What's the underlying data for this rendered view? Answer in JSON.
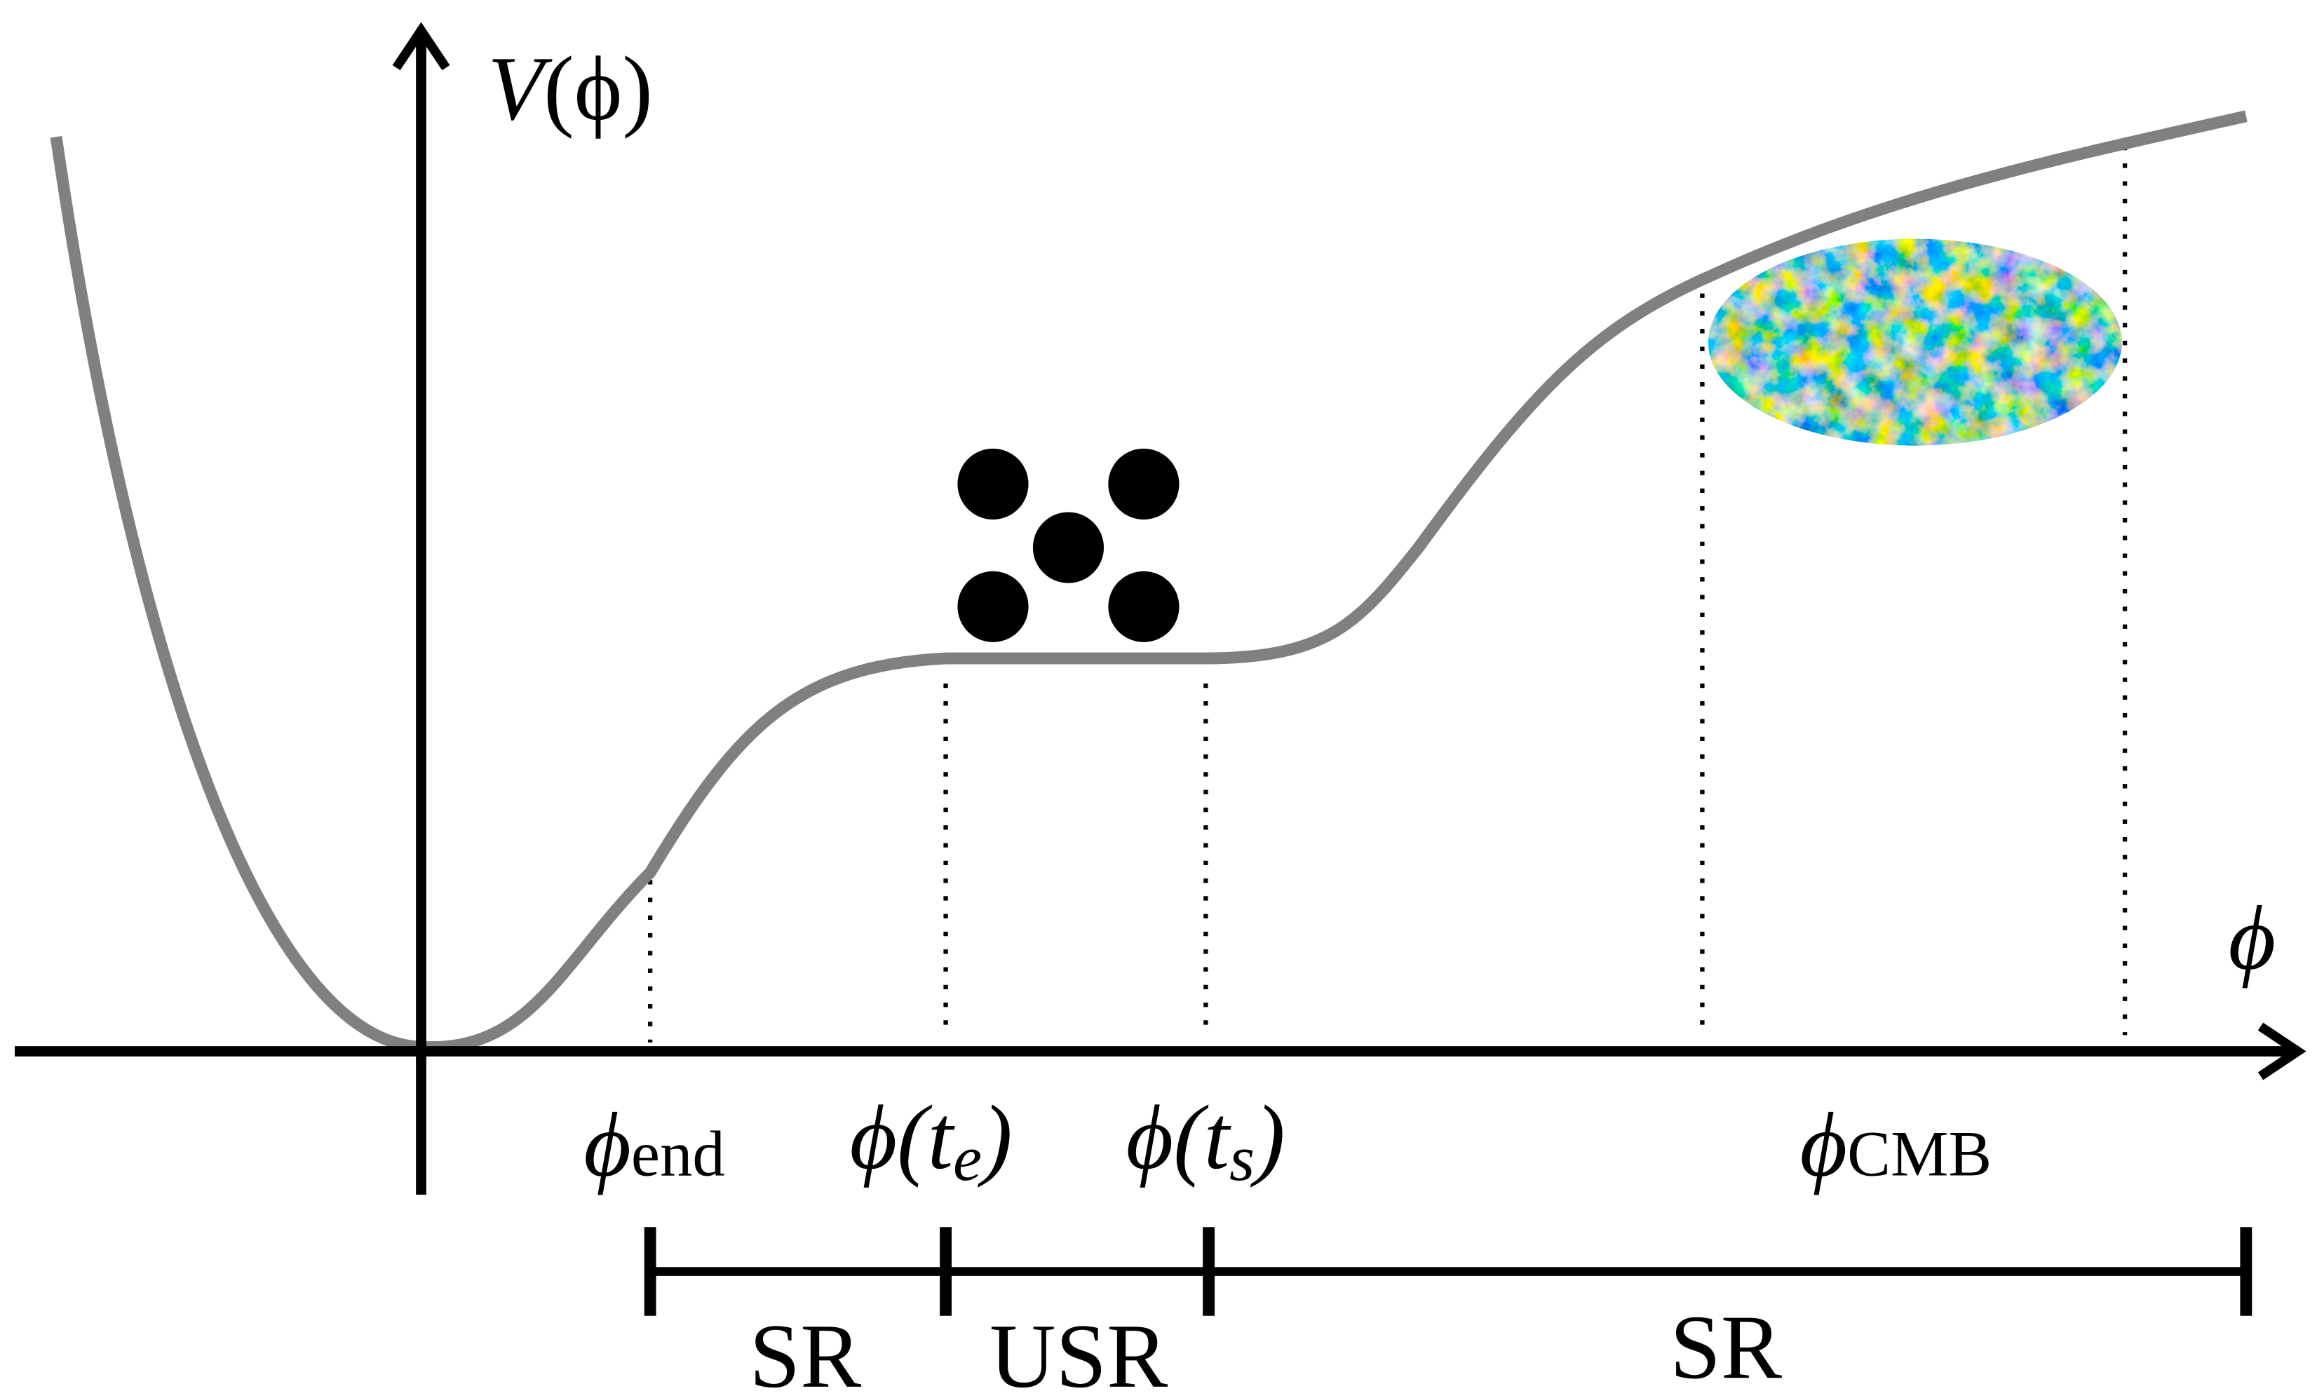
{
  "y_axis_label": {
    "symbol": "V",
    "argument": "(ϕ)"
  },
  "x_axis_label": "ϕ",
  "markers": [
    {
      "symbol": "ϕ",
      "subscript": "end"
    },
    {
      "symbol": "ϕ(t",
      "subscript": "e",
      "close": ")"
    },
    {
      "symbol": "ϕ(t",
      "subscript": "s",
      "close": ")"
    },
    {
      "symbol": "ϕ",
      "subscript": "CMB"
    }
  ],
  "phases": [
    "SR",
    "USR",
    "SR"
  ]
}
